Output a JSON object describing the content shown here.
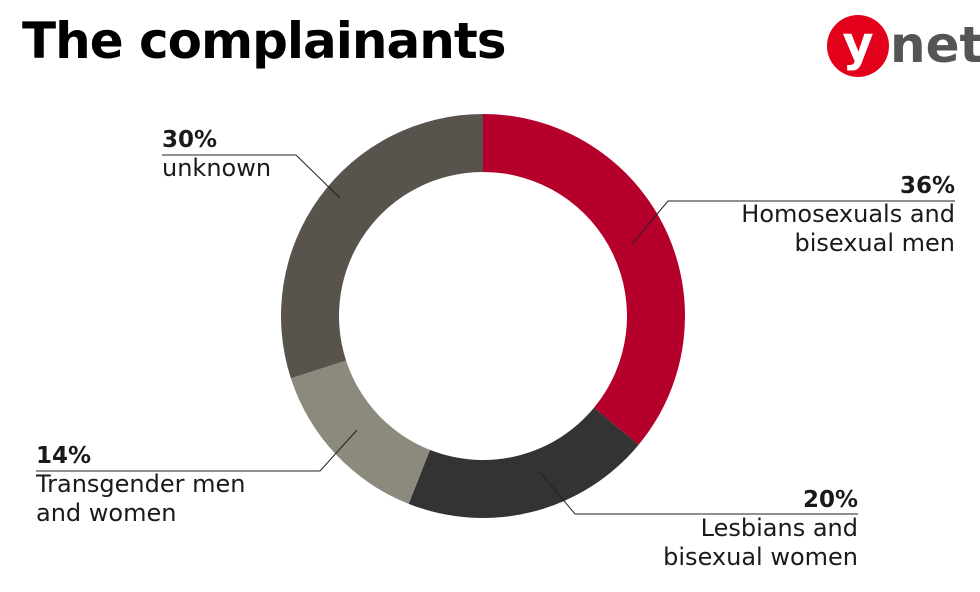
{
  "chart_data": {
    "type": "donut",
    "title": "The complainants",
    "logo": {
      "mark": "y",
      "rest": "net"
    },
    "categories": [
      "Homosexuals and bisexual men",
      "Lesbians and bisexual women",
      "Transgender men and women",
      "unknown"
    ],
    "values": [
      36,
      20,
      14,
      30
    ],
    "value_labels": [
      "36%",
      "20%",
      "14%",
      "30%"
    ],
    "colors": [
      "#b5002b",
      "#333333",
      "#8c8a7d",
      "#58534c"
    ]
  }
}
